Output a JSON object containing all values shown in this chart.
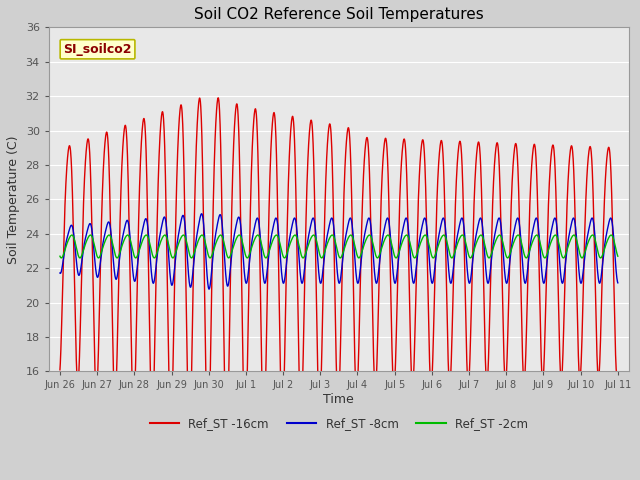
{
  "title": "Soil CO2 Reference Soil Temperatures",
  "xlabel": "Time",
  "ylabel": "Soil Temperature (C)",
  "ylim": [
    16,
    36
  ],
  "fig_bg_color": "#d0d0d0",
  "plot_bg_color": "#e8e8e8",
  "annotation_text": "SI_soilco2",
  "annotation_color": "#8b0000",
  "annotation_bg": "#ffffcc",
  "annotation_border": "#b8b800",
  "grid_color": "#ffffff",
  "series_labels": [
    "Ref_ST -16cm",
    "Ref_ST -8cm",
    "Ref_ST -2cm"
  ],
  "series_colors": [
    "#dd0000",
    "#0000cc",
    "#00bb00"
  ],
  "xtick_labels": [
    "Jun 26",
    "Jun 27",
    "Jun 28",
    "Jun 29",
    "Jun 30",
    "Jul 1",
    "Jul 2",
    "Jul 3",
    "Jul 4",
    "Jul 5",
    "Jul 6",
    "Jul 7",
    "Jul 8",
    "Jul 9",
    "Jul 10",
    "Jul 11"
  ],
  "xtick_positions": [
    0,
    1,
    2,
    3,
    4,
    5,
    6,
    7,
    8,
    9,
    10,
    11,
    12,
    13,
    14,
    15
  ],
  "xlim": [
    -0.3,
    15.3
  ],
  "ytick_positions": [
    16,
    18,
    20,
    22,
    24,
    26,
    28,
    30,
    32,
    34,
    36
  ]
}
